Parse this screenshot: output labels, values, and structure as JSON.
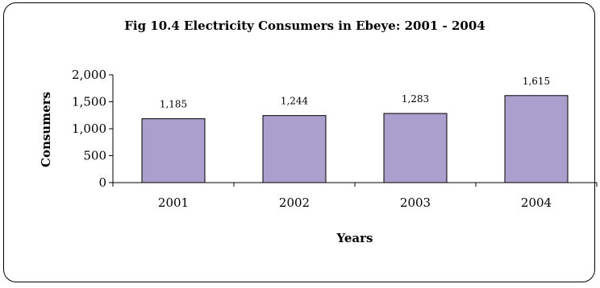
{
  "chart_data": {
    "type": "bar",
    "title": "Fig 10.4  Electricity Consumers in Ebeye: 2001 - 2004",
    "xlabel": "Years",
    "ylabel": "Consumers",
    "categories": [
      "2001",
      "2002",
      "2003",
      "2004"
    ],
    "values": [
      1185,
      1244,
      1283,
      1615
    ],
    "value_labels": [
      "1,185",
      "1,244",
      "1,283",
      "1,615"
    ],
    "yticks": [
      0,
      500,
      1000,
      1500,
      2000
    ],
    "ytick_labels": [
      "0",
      "500",
      "1,000",
      "1,500",
      "2,000"
    ],
    "ylim": [
      0,
      2000
    ],
    "grid": false,
    "legend": "none",
    "bar_color": "#ab9fce",
    "bar_edge_color": "#000000"
  }
}
